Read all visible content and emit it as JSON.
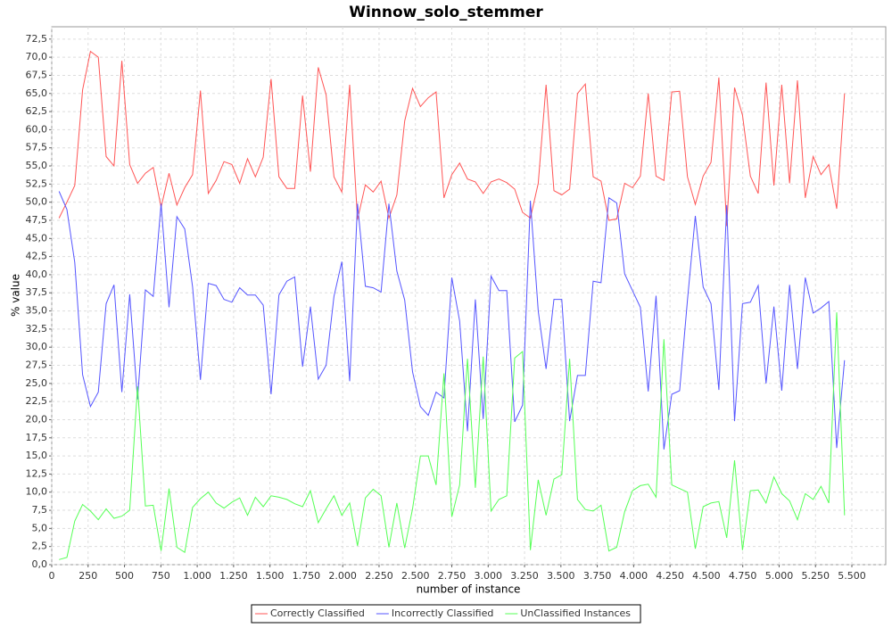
{
  "chart_data": {
    "type": "line",
    "title": "Winnow_solo_stemmer",
    "x_label": "number of instance",
    "y_label": "% value",
    "grid": true,
    "legend": "bottom",
    "xlim": [
      0,
      5733
    ],
    "ylim": [
      0,
      74.2
    ],
    "xticks": [
      0,
      250,
      500,
      750,
      {
        "value": 1000,
        "label": "1.000"
      },
      {
        "value": 1250,
        "label": "1.250"
      },
      {
        "value": 1500,
        "label": "1.500"
      },
      {
        "value": 1750,
        "label": "1.750"
      },
      {
        "value": 2000,
        "label": "2.000"
      },
      {
        "value": 2250,
        "label": "2.250"
      },
      {
        "value": 2500,
        "label": "2.500"
      },
      {
        "value": 2750,
        "label": "2.750"
      },
      {
        "value": 3000,
        "label": "3.000"
      },
      {
        "value": 3250,
        "label": "3.250"
      },
      {
        "value": 3500,
        "label": "3.500"
      },
      {
        "value": 3750,
        "label": "3.750"
      },
      {
        "value": 4000,
        "label": "4.000"
      },
      {
        "value": 4250,
        "label": "4.250"
      },
      {
        "value": 4500,
        "label": "4.500"
      },
      {
        "value": 4750,
        "label": "4.750"
      },
      {
        "value": 5000,
        "label": "5.000"
      },
      {
        "value": 5250,
        "label": "5.250"
      },
      {
        "value": 5500,
        "label": "5.500"
      }
    ],
    "yticks": [
      {
        "value": 0,
        "label": "0,0"
      },
      {
        "value": 2.5,
        "label": "2,5"
      },
      {
        "value": 5,
        "label": "5,0"
      },
      {
        "value": 7.5,
        "label": "7,5"
      },
      {
        "value": 10,
        "label": "10,0"
      },
      {
        "value": 12.5,
        "label": "12,5"
      },
      {
        "value": 15,
        "label": "15,0"
      },
      {
        "value": 17.5,
        "label": "17,5"
      },
      {
        "value": 20,
        "label": "20,0"
      },
      {
        "value": 22.5,
        "label": "22,5"
      },
      {
        "value": 25,
        "label": "25,0"
      },
      {
        "value": 27.5,
        "label": "27,5"
      },
      {
        "value": 30,
        "label": "30,0"
      },
      {
        "value": 32.5,
        "label": "32,5"
      },
      {
        "value": 35,
        "label": "35,0"
      },
      {
        "value": 37.5,
        "label": "37,5"
      },
      {
        "value": 40,
        "label": "40,0"
      },
      {
        "value": 42.5,
        "label": "42,5"
      },
      {
        "value": 45,
        "label": "45,0"
      },
      {
        "value": 47.5,
        "label": "47,5"
      },
      {
        "value": 50,
        "label": "50,0"
      },
      {
        "value": 52.5,
        "label": "52,5"
      },
      {
        "value": 55,
        "label": "55,0"
      },
      {
        "value": 57.5,
        "label": "57,5"
      },
      {
        "value": 60,
        "label": "60,0"
      },
      {
        "value": 62.5,
        "label": "62,5"
      },
      {
        "value": 65,
        "label": "65,0"
      },
      {
        "value": 67.5,
        "label": "67,5"
      },
      {
        "value": 70,
        "label": "70,0"
      },
      {
        "value": 72.5,
        "label": "72,5"
      }
    ],
    "x": [
      50,
      104,
      158,
      212,
      266,
      320,
      374,
      428,
      482,
      536,
      590,
      644,
      698,
      752,
      806,
      860,
      914,
      968,
      1022,
      1076,
      1130,
      1184,
      1238,
      1292,
      1346,
      1400,
      1454,
      1508,
      1562,
      1616,
      1670,
      1724,
      1778,
      1832,
      1886,
      1940,
      1994,
      2048,
      2102,
      2156,
      2210,
      2264,
      2318,
      2372,
      2426,
      2480,
      2534,
      2588,
      2642,
      2696,
      2750,
      2804,
      2858,
      2912,
      2966,
      3020,
      3074,
      3128,
      3182,
      3236,
      3290,
      3344,
      3398,
      3452,
      3506,
      3560,
      3614,
      3668,
      3722,
      3776,
      3830,
      3884,
      3938,
      3992,
      4046,
      4100,
      4154,
      4208,
      4262,
      4316,
      4370,
      4424,
      4478,
      4532,
      4586,
      4640,
      4694,
      4748,
      4802,
      4856,
      4910,
      4964,
      5018,
      5072,
      5126,
      5180,
      5234,
      5288,
      5342,
      5396,
      5450
    ],
    "series": [
      {
        "name": "Correctly Classified",
        "color": "#ff5555",
        "values": [
          47.8,
          50,
          52.3,
          65.5,
          70.8,
          70,
          56.3,
          55,
          69.5,
          55.2,
          52.6,
          54,
          54.8,
          49.3,
          54,
          49.6,
          52,
          53.8,
          65.4,
          51.2,
          53,
          55.6,
          55.2,
          52.6,
          56,
          53.5,
          56.2,
          67,
          53.5,
          51.9,
          51.9,
          64.7,
          54.2,
          68.6,
          64.8,
          53.5,
          51.4,
          66.2,
          47.6,
          52.4,
          51.4,
          52.9,
          47.8,
          51,
          61.2,
          65.7,
          63.2,
          64.4,
          65.2,
          50.6,
          53.8,
          55.4,
          53.2,
          52.8,
          51.2,
          52.8,
          53.2,
          52.7,
          51.8,
          48.6,
          47.8,
          52.6,
          66.2,
          51.6,
          51,
          51.8,
          65,
          66.3,
          53.5,
          52.9,
          47.5,
          47.7,
          52.6,
          52,
          53.6,
          65,
          53.6,
          53,
          65.2,
          65.3,
          53.5,
          49.7,
          53.6,
          55.5,
          67.2,
          46.7,
          65.8,
          62,
          53.6,
          51.2,
          66.5,
          52.3,
          66.2,
          52.6,
          66.8,
          50.6,
          56.3,
          53.8,
          55.2,
          49.1,
          65
        ]
      },
      {
        "name": "Incorrectly Classified",
        "color": "#5555ff",
        "values": [
          51.5,
          49,
          41.7,
          26.2,
          21.8,
          23.8,
          36,
          38.6,
          23.8,
          37.3,
          22.8,
          37.9,
          37,
          49.8,
          35.5,
          48,
          46.3,
          38.3,
          25.5,
          38.8,
          38.5,
          36.6,
          36.2,
          38.2,
          37.2,
          37.2,
          35.8,
          23.5,
          37.2,
          39.1,
          39.7,
          27.3,
          35.6,
          25.6,
          27.5,
          37,
          41.8,
          25.3,
          49.8,
          38.4,
          38.2,
          37.6,
          49.8,
          40.5,
          36.5,
          26.6,
          21.8,
          20.6,
          23.8,
          23,
          39.6,
          33.6,
          18.4,
          36.6,
          20.1,
          39.8,
          37.8,
          37.8,
          19.7,
          22,
          50.2,
          35,
          27,
          36.6,
          36.6,
          19.8,
          26.1,
          26.1,
          39.1,
          38.9,
          50.6,
          49.9,
          40.1,
          37.8,
          35.5,
          23.9,
          37.1,
          15.9,
          23.5,
          24,
          36.5,
          48.1,
          38.3,
          36,
          24.1,
          49.6,
          19.8,
          36,
          36.2,
          38.5,
          25,
          35.6,
          24,
          38.6,
          27,
          39.6,
          34.7,
          35.4,
          36.3,
          16.1,
          28.2
        ]
      },
      {
        "name": "UnClassified Instances",
        "color": "#55ff55",
        "values": [
          0.7,
          1,
          6,
          8.3,
          7.4,
          6.2,
          7.7,
          6.4,
          6.7,
          7.5,
          24.6,
          8.1,
          8.2,
          1.9,
          10.5,
          2.4,
          1.7,
          7.9,
          9.1,
          10,
          8.5,
          7.8,
          8.6,
          9.2,
          6.8,
          9.3,
          8,
          9.5,
          9.3,
          9,
          8.4,
          8,
          10.2,
          5.8,
          7.7,
          9.5,
          6.8,
          8.5,
          2.6,
          9.2,
          10.4,
          9.5,
          2.4,
          8.5,
          2.3,
          7.7,
          15,
          15,
          11,
          26.4,
          6.6,
          11,
          28.4,
          10.6,
          28.7,
          7.4,
          9,
          9.5,
          28.5,
          29.4,
          2,
          11.7,
          6.8,
          11.8,
          12.4,
          28.4,
          9,
          7.6,
          7.4,
          8.2,
          1.9,
          2.4,
          7.3,
          10.2,
          10.9,
          11.1,
          9.3,
          31.1,
          11,
          10.5,
          10,
          2.2,
          8,
          8.5,
          8.7,
          3.7,
          14.4,
          2,
          10.2,
          10.3,
          8.5,
          12.1,
          9.8,
          8.8,
          6.2,
          9.8,
          9,
          10.8,
          8.5,
          34.8,
          6.8
        ]
      }
    ]
  }
}
